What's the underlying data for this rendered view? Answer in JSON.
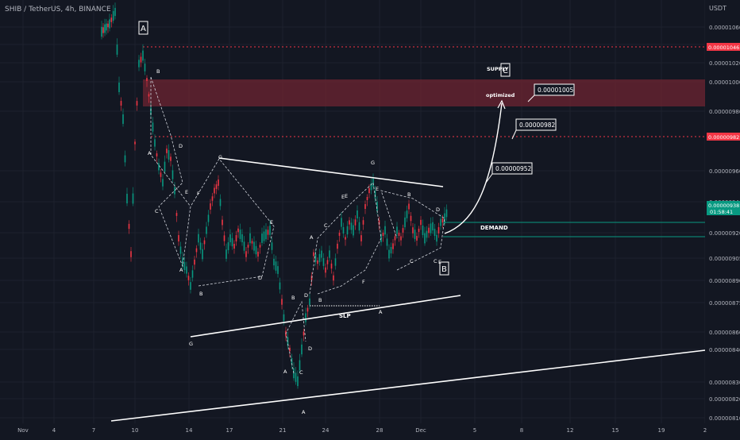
{
  "header": {
    "symbol": "SHIB / TetherUS, 4h, BINANCE"
  },
  "chart_data": {
    "type": "candlestick",
    "title": "SHIB / TetherUS, 4h, BINANCE",
    "y_unit_label": "USDT",
    "ylim": [
      8.1e-06,
      1.07e-05
    ],
    "y_ticks": [
      {
        "value": 1.06e-05,
        "label": "0.00001060"
      },
      {
        "value": 1.04e-05,
        "label": "0.00001040"
      },
      {
        "value": 1.02e-05,
        "label": "0.00001020"
      },
      {
        "value": 1e-05,
        "label": "0.00001000"
      },
      {
        "value": 9.8e-06,
        "label": "0.00000980"
      },
      {
        "value": 9.6e-06,
        "label": "0.00000960"
      },
      {
        "value": 9.4e-06,
        "label": "0.00000940"
      },
      {
        "value": 9.2e-06,
        "label": "0.00000920"
      },
      {
        "value": 9.05e-06,
        "label": "0.00000905"
      },
      {
        "value": 8.9e-06,
        "label": "0.00000890"
      },
      {
        "value": 8.75e-06,
        "label": "0.00000875"
      },
      {
        "value": 8.6e-06,
        "label": "0.00000860"
      },
      {
        "value": 8.4e-06,
        "label": "0.00000840"
      },
      {
        "value": 8.3e-06,
        "label": "0.00000830"
      },
      {
        "value": 8.2e-06,
        "label": "0.00000820"
      },
      {
        "value": 8.1e-06,
        "label": "0.00000810"
      }
    ],
    "x_ticks": [
      "Nov",
      "4",
      "7",
      "10",
      "14",
      "17",
      "21",
      "24",
      "28",
      "Dec",
      "5",
      "8",
      "12",
      "15",
      "19",
      "2"
    ],
    "price_badges": [
      {
        "value": 1.046e-05,
        "label": "0.00001046",
        "color": "#f23645"
      },
      {
        "value": 9.82e-06,
        "label": "0.00000982",
        "color": "#f23645"
      },
      {
        "value": 9.38e-06,
        "label": "0.00000938",
        "sub": "01:58:41",
        "color": "#089981"
      }
    ],
    "zones": [
      {
        "label": "SUPPLY",
        "from": 1.005e-05,
        "to": 1.022e-05,
        "color": "#6d2432"
      },
      {
        "label": "DEMAND",
        "from": 9.2e-06,
        "to": 9.3e-06,
        "color": "#089981"
      }
    ],
    "targets": [
      "0.00000952",
      "0.00000982",
      "0.00001005"
    ],
    "annotations": [
      "A",
      "B",
      "C",
      "optimized",
      "SUPPLY",
      "DEMAND",
      "SLP"
    ],
    "wave_labels": [
      "B",
      "A",
      "D",
      "C",
      "E",
      "F",
      "A",
      "G",
      "E",
      "B",
      "D",
      "G",
      "B",
      "D",
      "A",
      "C",
      "E",
      "A",
      "D",
      "B",
      "F",
      "E",
      "C",
      "A",
      "G",
      "E",
      "B",
      "D",
      "C",
      "A",
      "E",
      "C"
    ],
    "up_color": "#089981",
    "down_color": "#f23645"
  }
}
